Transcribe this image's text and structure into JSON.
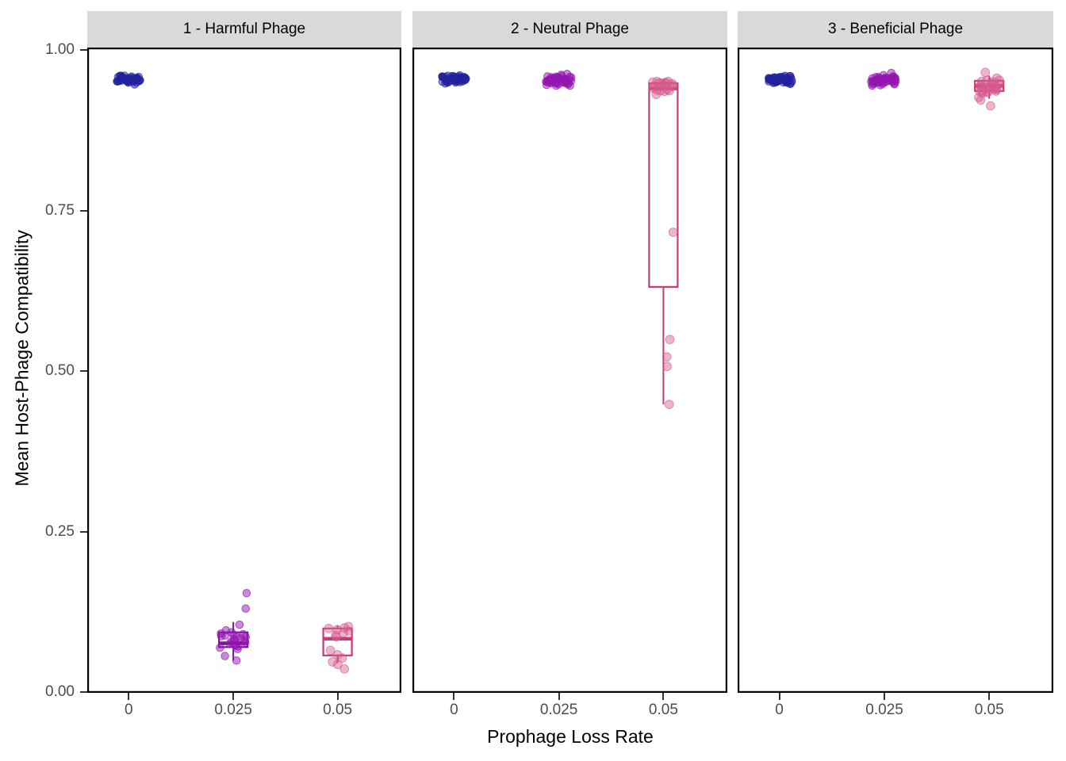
{
  "figure": {
    "background": "#ffffff",
    "strip_background": "#d9d9d9",
    "panel_border_color": "#000000",
    "axis_text_color": "#4d4d4d",
    "tick_color": "#333333",
    "y_axis": {
      "title": "Mean Host-Phage Compatibility",
      "tick_labels": [
        "1.00",
        "0.75",
        "0.50",
        "0.25",
        "0.00"
      ],
      "tick_values": [
        1.0,
        0.75,
        0.5,
        0.25,
        0.0
      ]
    },
    "x_axis": {
      "title": "Prophage Loss Rate",
      "tick_labels": [
        "0",
        "0.025",
        "0.05"
      ]
    },
    "colors": {
      "navy": {
        "point": "#22229e",
        "box": "#22229e",
        "radius": 4.6,
        "opacity": 0.5,
        "jitter": 16
      },
      "purple": {
        "point": "#9315b0",
        "box": "#7e0fa3",
        "radius": 4.8,
        "opacity": 0.5,
        "jitter": 17
      },
      "pink": {
        "point": "#d45c8f",
        "box": "#ca3a72",
        "radius": 5.4,
        "opacity": 0.45,
        "jitter": 14
      }
    }
  },
  "chart_data": {
    "type": "boxplot-jitter",
    "title": "",
    "xlabel": "Prophage Loss Rate",
    "ylabel": "Mean Host-Phage Compatibility",
    "ylim": [
      0.0,
      1.0
    ],
    "grid": false,
    "x_categories": [
      "0",
      "0.025",
      "0.05"
    ],
    "facets": [
      {
        "label": "1 - Harmful Phage",
        "groups": [
          {
            "x": "0",
            "color_key": "navy",
            "cluster": {
              "n": 55,
              "mean": 0.954,
              "sd": 0.0032
            },
            "points": [],
            "box": null
          },
          {
            "x": "0.025",
            "color_key": "purple",
            "cluster": null,
            "points": [
              0.154,
              0.13,
              0.105,
              0.096,
              0.093,
              0.091,
              0.09,
              0.089,
              0.088,
              0.087,
              0.086,
              0.085,
              0.084,
              0.082,
              0.081,
              0.08,
              0.078,
              0.077,
              0.075,
              0.073,
              0.071,
              0.069,
              0.067,
              0.056,
              0.049
            ],
            "box": {
              "whisker_low": 0.049,
              "q1": 0.07,
              "median": 0.076,
              "q3": 0.093,
              "whisker_high": 0.109
            }
          },
          {
            "x": "0.05",
            "color_key": "pink",
            "cluster": null,
            "points": [
              0.102,
              0.1,
              0.099,
              0.097,
              0.095,
              0.092,
              0.089,
              0.086,
              0.065,
              0.058,
              0.053,
              0.047,
              0.043,
              0.036
            ],
            "box": {
              "whisker_low": 0.045,
              "q1": 0.057,
              "median": 0.083,
              "q3": 0.099,
              "whisker_high": 0.104
            }
          }
        ]
      },
      {
        "label": "2 - Neutral Phage",
        "groups": [
          {
            "x": "0",
            "color_key": "navy",
            "cluster": {
              "n": 55,
              "mean": 0.954,
              "sd": 0.0032
            },
            "points": [],
            "box": null
          },
          {
            "x": "0.025",
            "color_key": "purple",
            "cluster": {
              "n": 55,
              "mean": 0.953,
              "sd": 0.0038
            },
            "points": [],
            "box": null
          },
          {
            "x": "0.05",
            "color_key": "pink",
            "cluster": {
              "n": 20,
              "mean": 0.944,
              "sd": 0.007
            },
            "points": [
              0.716,
              0.549,
              0.522,
              0.507,
              0.448
            ],
            "box": {
              "whisker_low": 0.448,
              "q1": 0.631,
              "median": 0.94,
              "q3": 0.948,
              "whisker_high": 0.955
            }
          }
        ]
      },
      {
        "label": "3 - Beneficial Phage",
        "groups": [
          {
            "x": "0",
            "color_key": "navy",
            "cluster": {
              "n": 55,
              "mean": 0.954,
              "sd": 0.0032
            },
            "points": [],
            "box": null
          },
          {
            "x": "0.025",
            "color_key": "purple",
            "cluster": {
              "n": 55,
              "mean": 0.953,
              "sd": 0.0038
            },
            "points": [],
            "box": null
          },
          {
            "x": "0.05",
            "color_key": "pink",
            "cluster": {
              "n": 26,
              "mean": 0.945,
              "sd": 0.008
            },
            "points": [
              0.965,
              0.922,
              0.913
            ],
            "box": {
              "whisker_low": 0.924,
              "q1": 0.936,
              "median": 0.944,
              "q3": 0.952,
              "whisker_high": 0.96
            }
          }
        ]
      }
    ]
  }
}
